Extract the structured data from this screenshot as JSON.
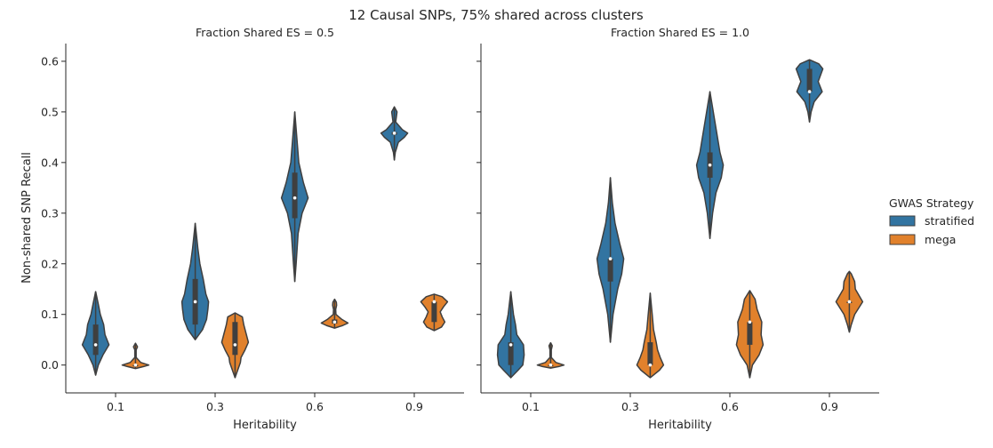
{
  "chart_data": {
    "type": "violin",
    "title": "12 Causal SNPs, 75% shared across clusters",
    "ylabel": "Non-shared SNP Recall",
    "ylim": [
      -0.055,
      0.635
    ],
    "yticks": [
      0.0,
      0.1,
      0.2,
      0.3,
      0.4,
      0.5,
      0.6
    ],
    "ytick_labels": [
      "0.0",
      "0.1",
      "0.2",
      "0.3",
      "0.4",
      "0.5",
      "0.6"
    ],
    "categories": [
      "0.1",
      "0.3",
      "0.6",
      "0.9"
    ],
    "legend": {
      "title": "GWAS Strategy",
      "placement": "right",
      "entries": [
        {
          "name": "stratified",
          "color": "#3274a1"
        },
        {
          "name": "mega",
          "color": "#e1812c"
        }
      ]
    },
    "panels": [
      {
        "title": "Fraction Shared ES = 0.5",
        "xlabel": "Heritability",
        "violins": [
          {
            "category": "0.1",
            "series": "stratified",
            "median": 0.04,
            "q1": 0.02,
            "q3": 0.08,
            "profile": [
              [
                -0.02,
                0.0
              ],
              [
                0.0,
                0.2
              ],
              [
                0.02,
                0.55
              ],
              [
                0.04,
                1.0
              ],
              [
                0.06,
                0.7
              ],
              [
                0.08,
                0.6
              ],
              [
                0.1,
                0.35
              ],
              [
                0.12,
                0.2
              ],
              [
                0.145,
                0.0
              ]
            ]
          },
          {
            "category": "0.1",
            "series": "mega",
            "median": 0.0,
            "q1": 0.0,
            "q3": 0.0,
            "profile": [
              [
                -0.007,
                0.0
              ],
              [
                -0.003,
                0.6
              ],
              [
                0.0,
                1.0
              ],
              [
                0.005,
                0.4
              ],
              [
                0.015,
                0.05
              ],
              [
                0.03,
                0.05
              ],
              [
                0.036,
                0.15
              ],
              [
                0.043,
                0.0
              ]
            ]
          },
          {
            "category": "0.3",
            "series": "stratified",
            "median": 0.125,
            "q1": 0.08,
            "q3": 0.17,
            "profile": [
              [
                0.05,
                0.0
              ],
              [
                0.07,
                0.55
              ],
              [
                0.09,
                0.85
              ],
              [
                0.11,
                0.95
              ],
              [
                0.125,
                1.0
              ],
              [
                0.14,
                0.8
              ],
              [
                0.17,
                0.6
              ],
              [
                0.2,
                0.35
              ],
              [
                0.23,
                0.2
              ],
              [
                0.28,
                0.0
              ]
            ]
          },
          {
            "category": "0.3",
            "series": "mega",
            "median": 0.04,
            "q1": 0.02,
            "q3": 0.085,
            "profile": [
              [
                -0.025,
                0.0
              ],
              [
                -0.01,
                0.2
              ],
              [
                0.005,
                0.4
              ],
              [
                0.015,
                0.45
              ],
              [
                0.03,
                0.75
              ],
              [
                0.045,
                1.0
              ],
              [
                0.06,
                0.85
              ],
              [
                0.08,
                0.65
              ],
              [
                0.095,
                0.55
              ],
              [
                0.103,
                0.0
              ]
            ]
          },
          {
            "category": "0.6",
            "series": "stratified",
            "median": 0.33,
            "q1": 0.29,
            "q3": 0.38,
            "profile": [
              [
                0.165,
                0.0
              ],
              [
                0.2,
                0.1
              ],
              [
                0.26,
                0.25
              ],
              [
                0.3,
                0.55
              ],
              [
                0.33,
                1.0
              ],
              [
                0.36,
                0.65
              ],
              [
                0.4,
                0.3
              ],
              [
                0.45,
                0.15
              ],
              [
                0.5,
                0.0
              ]
            ]
          },
          {
            "category": "0.6",
            "series": "mega",
            "median": 0.085,
            "q1": 0.082,
            "q3": 0.09,
            "profile": [
              [
                0.073,
                0.0
              ],
              [
                0.078,
                0.6
              ],
              [
                0.083,
                1.0
              ],
              [
                0.09,
                0.55
              ],
              [
                0.1,
                0.1
              ],
              [
                0.11,
                0.08
              ],
              [
                0.118,
                0.15
              ],
              [
                0.124,
                0.13
              ],
              [
                0.13,
                0.0
              ]
            ]
          },
          {
            "category": "0.9",
            "series": "stratified",
            "median": 0.458,
            "q1": 0.455,
            "q3": 0.46,
            "profile": [
              [
                0.405,
                0.0
              ],
              [
                0.42,
                0.07
              ],
              [
                0.44,
                0.3
              ],
              [
                0.45,
                0.75
              ],
              [
                0.458,
                1.0
              ],
              [
                0.465,
                0.6
              ],
              [
                0.48,
                0.1
              ],
              [
                0.49,
                0.15
              ],
              [
                0.5,
                0.2
              ],
              [
                0.51,
                0.0
              ]
            ]
          },
          {
            "category": "0.9",
            "series": "mega",
            "median": 0.125,
            "q1": 0.085,
            "q3": 0.125,
            "profile": [
              [
                0.068,
                0.0
              ],
              [
                0.075,
                0.55
              ],
              [
                0.085,
                0.8
              ],
              [
                0.095,
                0.6
              ],
              [
                0.105,
                0.45
              ],
              [
                0.115,
                0.7
              ],
              [
                0.125,
                1.0
              ],
              [
                0.135,
                0.6
              ],
              [
                0.14,
                0.0
              ]
            ]
          }
        ]
      },
      {
        "title": "Fraction Shared ES = 1.0",
        "xlabel": "Heritability",
        "violins": [
          {
            "category": "0.1",
            "series": "stratified",
            "median": 0.04,
            "q1": 0.0,
            "q3": 0.045,
            "profile": [
              [
                -0.025,
                0.0
              ],
              [
                -0.01,
                0.55
              ],
              [
                0.0,
                0.9
              ],
              [
                0.02,
                1.0
              ],
              [
                0.04,
                0.95
              ],
              [
                0.06,
                0.45
              ],
              [
                0.08,
                0.35
              ],
              [
                0.1,
                0.2
              ],
              [
                0.145,
                0.0
              ]
            ]
          },
          {
            "category": "0.1",
            "series": "mega",
            "median": 0.0,
            "q1": 0.0,
            "q3": 0.0,
            "profile": [
              [
                -0.006,
                0.0
              ],
              [
                -0.003,
                0.6
              ],
              [
                0.0,
                1.0
              ],
              [
                0.005,
                0.4
              ],
              [
                0.015,
                0.05
              ],
              [
                0.03,
                0.05
              ],
              [
                0.038,
                0.12
              ],
              [
                0.044,
                0.0
              ]
            ]
          },
          {
            "category": "0.3",
            "series": "stratified",
            "median": 0.21,
            "q1": 0.165,
            "q3": 0.21,
            "profile": [
              [
                0.045,
                0.0
              ],
              [
                0.1,
                0.2
              ],
              [
                0.15,
                0.55
              ],
              [
                0.18,
                0.85
              ],
              [
                0.21,
                1.0
              ],
              [
                0.24,
                0.7
              ],
              [
                0.28,
                0.35
              ],
              [
                0.32,
                0.15
              ],
              [
                0.37,
                0.0
              ]
            ]
          },
          {
            "category": "0.3",
            "series": "mega",
            "median": 0.0,
            "q1": 0.0,
            "q3": 0.045,
            "profile": [
              [
                -0.025,
                0.0
              ],
              [
                -0.01,
                0.7
              ],
              [
                0.0,
                1.0
              ],
              [
                0.015,
                0.75
              ],
              [
                0.03,
                0.55
              ],
              [
                0.045,
                0.45
              ],
              [
                0.07,
                0.25
              ],
              [
                0.1,
                0.15
              ],
              [
                0.142,
                0.0
              ]
            ]
          },
          {
            "category": "0.6",
            "series": "stratified",
            "median": 0.395,
            "q1": 0.37,
            "q3": 0.42,
            "profile": [
              [
                0.25,
                0.0
              ],
              [
                0.3,
                0.2
              ],
              [
                0.34,
                0.45
              ],
              [
                0.37,
                0.85
              ],
              [
                0.395,
                1.0
              ],
              [
                0.42,
                0.75
              ],
              [
                0.46,
                0.5
              ],
              [
                0.5,
                0.25
              ],
              [
                0.54,
                0.0
              ]
            ]
          },
          {
            "category": "0.6",
            "series": "mega",
            "median": 0.085,
            "q1": 0.04,
            "q3": 0.085,
            "profile": [
              [
                -0.025,
                0.0
              ],
              [
                0.0,
                0.2
              ],
              [
                0.02,
                0.7
              ],
              [
                0.04,
                1.0
              ],
              [
                0.06,
                0.85
              ],
              [
                0.085,
                0.9
              ],
              [
                0.11,
                0.55
              ],
              [
                0.13,
                0.4
              ],
              [
                0.147,
                0.0
              ]
            ]
          },
          {
            "category": "0.9",
            "series": "stratified",
            "median": 0.54,
            "q1": 0.54,
            "q3": 0.585,
            "profile": [
              [
                0.48,
                0.0
              ],
              [
                0.5,
                0.12
              ],
              [
                0.52,
                0.35
              ],
              [
                0.54,
                0.95
              ],
              [
                0.56,
                0.65
              ],
              [
                0.585,
                1.0
              ],
              [
                0.595,
                0.7
              ],
              [
                0.603,
                0.0
              ]
            ]
          },
          {
            "category": "0.9",
            "series": "mega",
            "median": 0.125,
            "q1": 0.125,
            "q3": 0.125,
            "profile": [
              [
                0.065,
                0.0
              ],
              [
                0.08,
                0.15
              ],
              [
                0.1,
                0.4
              ],
              [
                0.125,
                1.0
              ],
              [
                0.15,
                0.45
              ],
              [
                0.165,
                0.4
              ],
              [
                0.18,
                0.15
              ],
              [
                0.185,
                0.0
              ]
            ]
          }
        ]
      }
    ]
  }
}
